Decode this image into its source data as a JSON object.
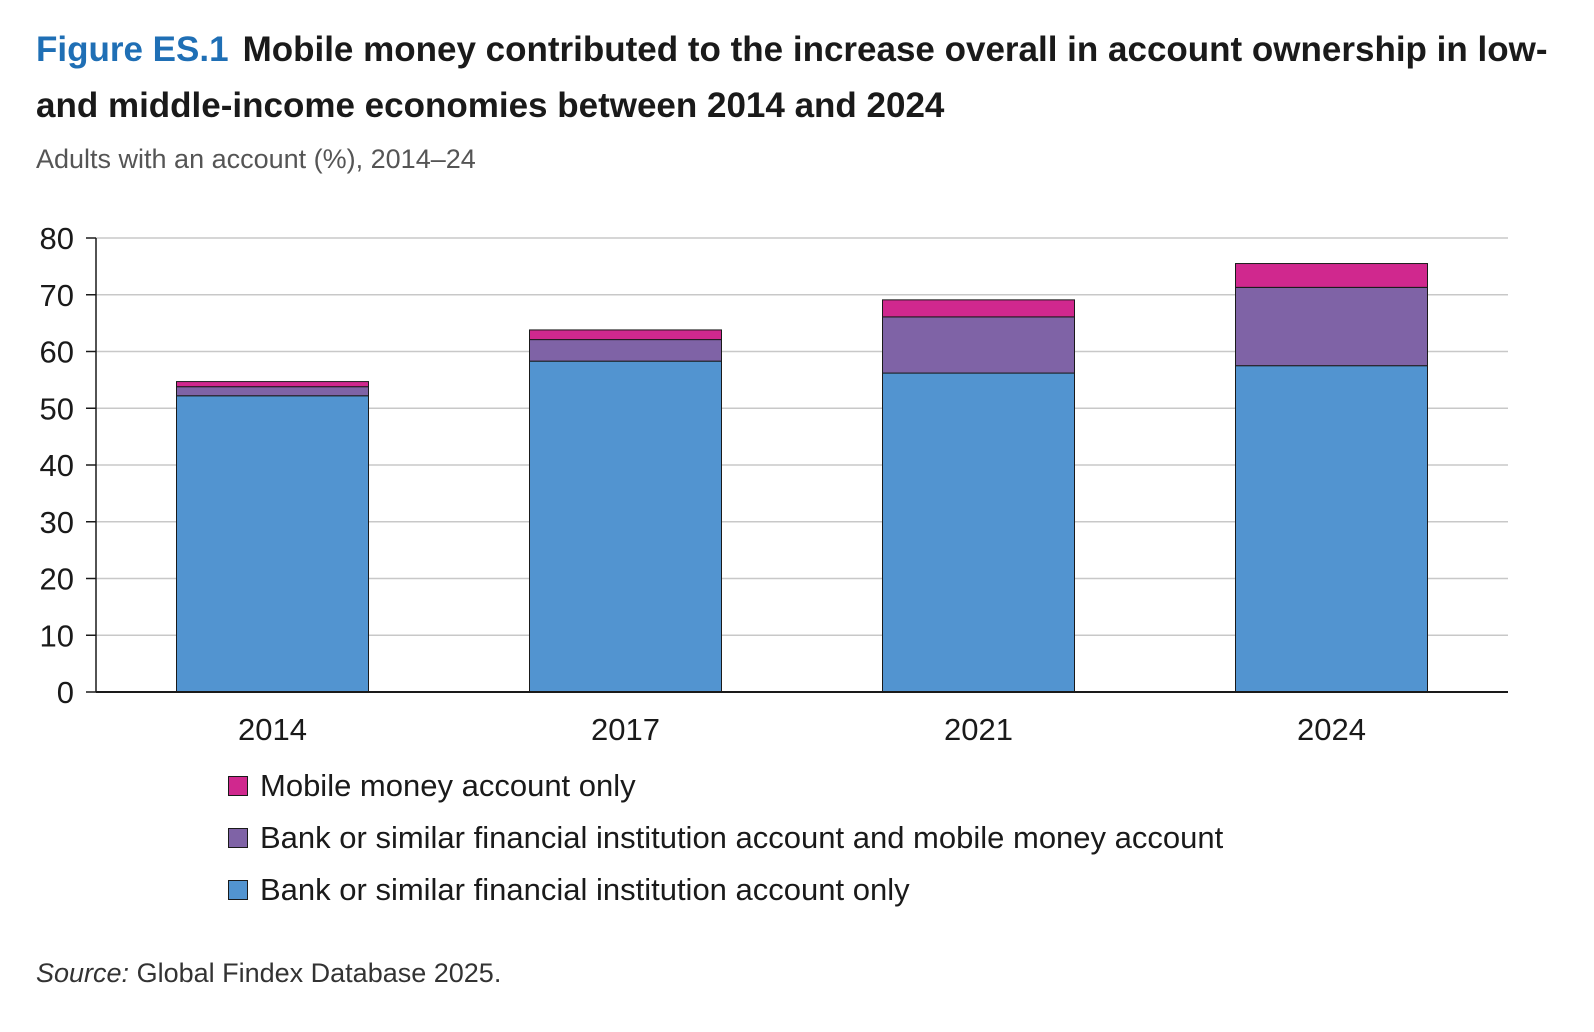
{
  "figure": {
    "label": "Figure ES.1",
    "title": "Mobile money contributed to the increase overall in account ownership in low- and middle-income economies between 2014 and 2024",
    "subtitle": "Adults with an account (%), 2014–24"
  },
  "source": {
    "prefix": "Source:",
    "text": "Global Findex Database 2025."
  },
  "colors": {
    "bank_only": "#5294d0",
    "both": "#7f63a6",
    "mobile_only": "#d0288e",
    "grid": "#c8c8c8",
    "axis": "#1a1a1a"
  },
  "chart_data": {
    "type": "bar",
    "stacked": true,
    "categories": [
      "2014",
      "2017",
      "2021",
      "2024"
    ],
    "ylim": [
      0,
      80
    ],
    "yticks": [
      0,
      10,
      20,
      30,
      40,
      50,
      60,
      70,
      80
    ],
    "grid": true,
    "legend_position": "bottom",
    "series": [
      {
        "name": "Bank or similar financial institution account only",
        "values": [
          52.2,
          58.3,
          56.2,
          57.5
        ]
      },
      {
        "name": "Bank or similar financial institution account and mobile money account",
        "values": [
          1.6,
          3.8,
          9.9,
          13.8
        ]
      },
      {
        "name": "Mobile money account only",
        "values": [
          0.9,
          1.7,
          3.0,
          4.2
        ]
      }
    ]
  },
  "legend": [
    {
      "label": "Mobile money account only",
      "color": "#d0288e"
    },
    {
      "label": "Bank or similar financial institution account and mobile money account",
      "color": "#7f63a6"
    },
    {
      "label": "Bank or similar financial institution account only",
      "color": "#5294d0"
    }
  ]
}
